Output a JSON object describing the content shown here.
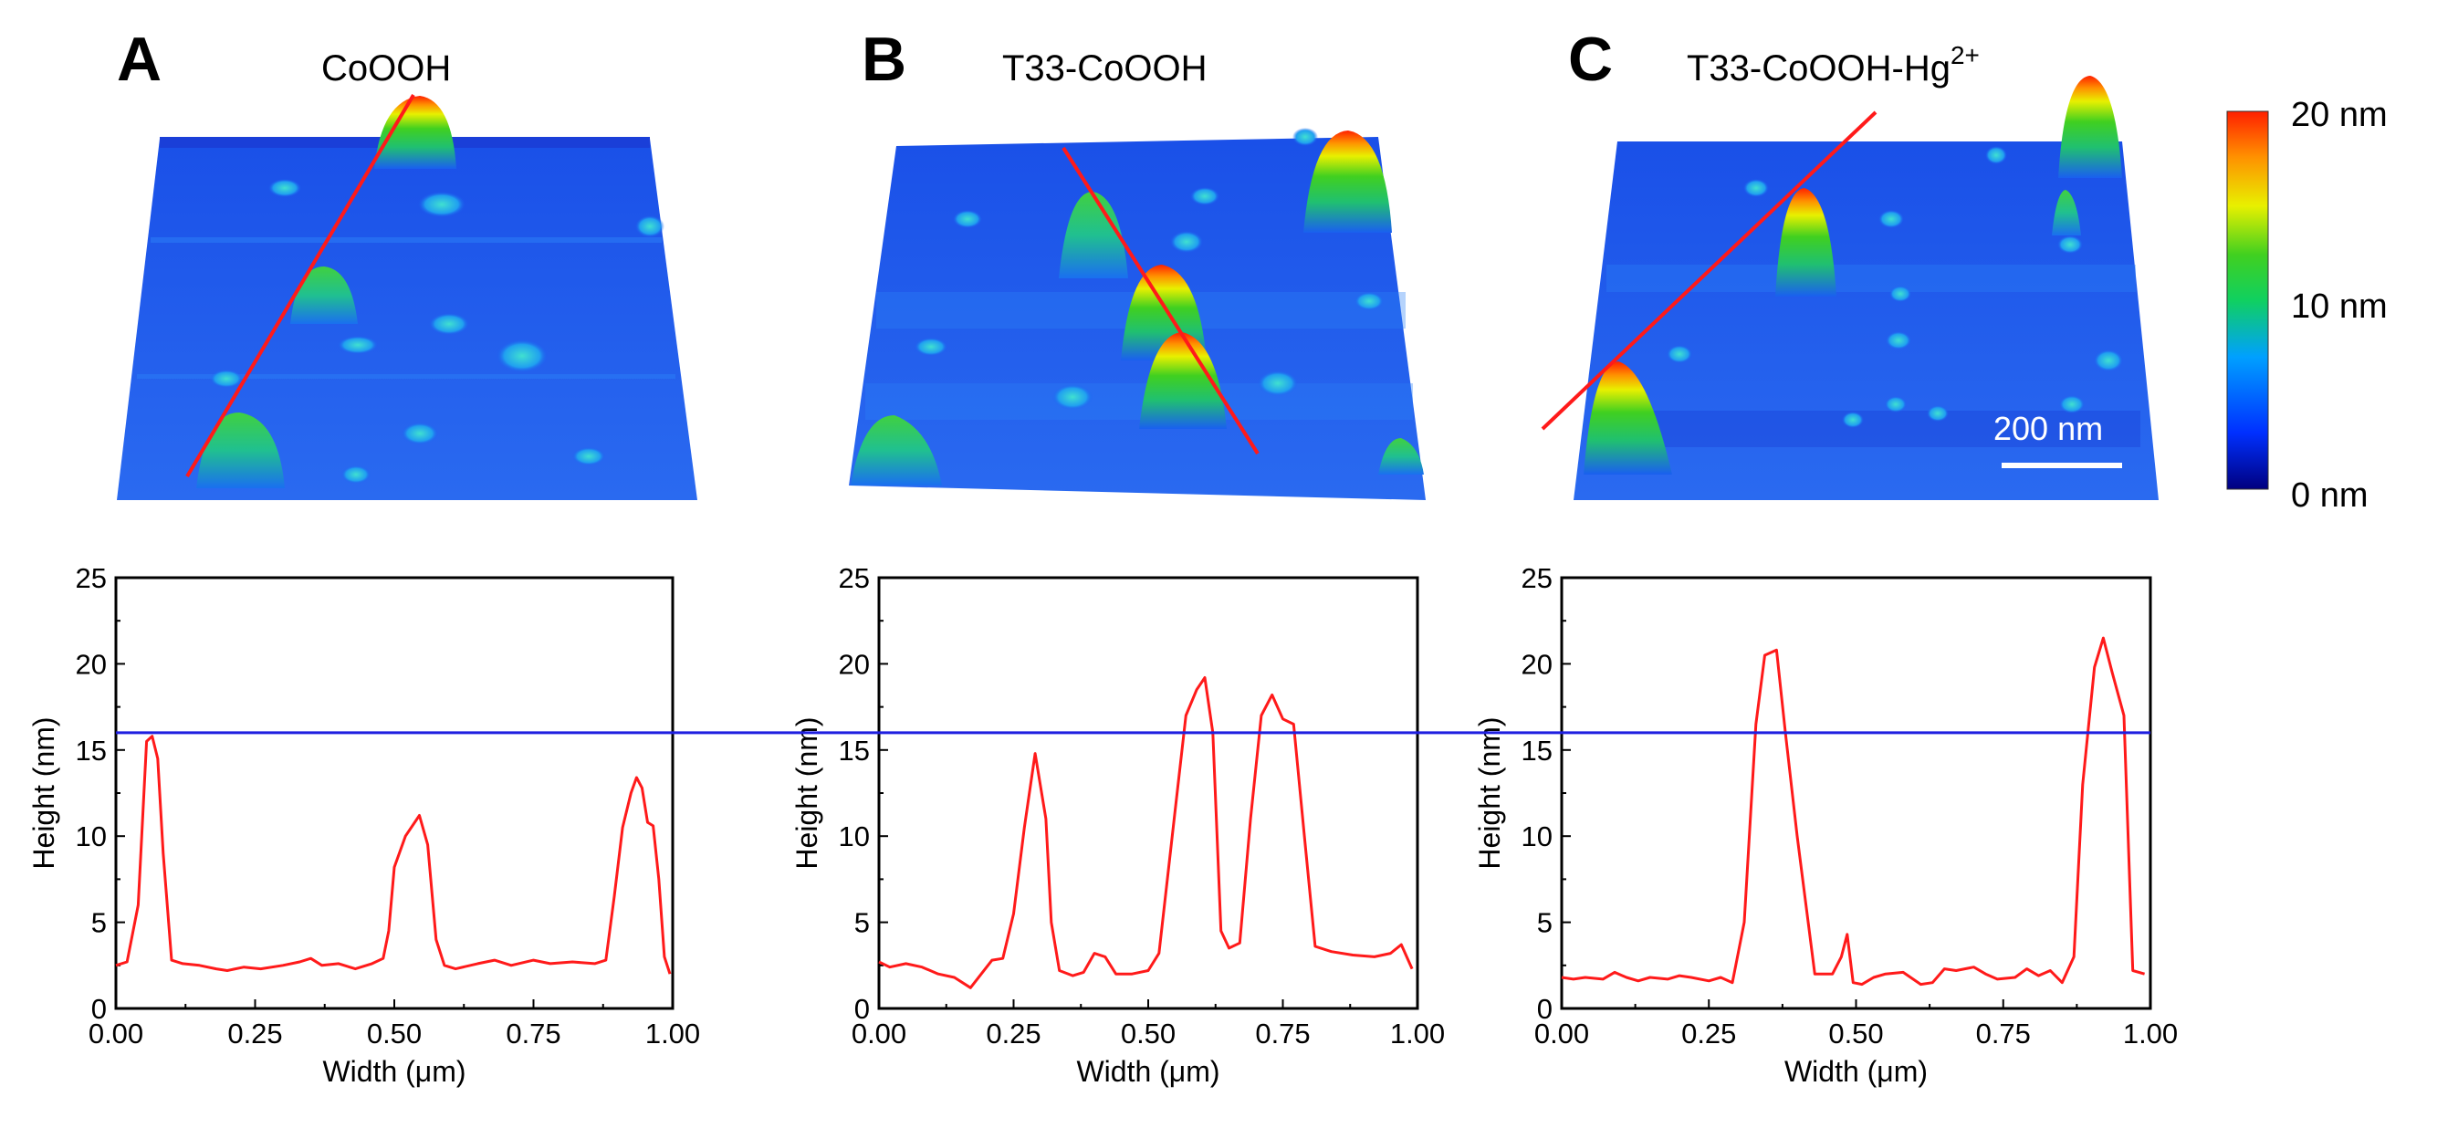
{
  "colors": {
    "profile_line": "#ff1a1a",
    "reference_line": "#1f1fe0",
    "colormap": [
      "#00007f",
      "#0030ff",
      "#00a0ff",
      "#10d060",
      "#40d020",
      "#e8f000",
      "#ff9000",
      "#ff2000"
    ]
  },
  "afm_images": [
    {
      "letter": "A",
      "title": "CoOOH"
    },
    {
      "letter": "B",
      "title": "T33-CoOOH"
    },
    {
      "letter": "C",
      "title": "T33-CoOOH-Hg",
      "title_sup": "2+"
    }
  ],
  "colorbar": {
    "labels": [
      "20 nm",
      "10 nm",
      "0 nm"
    ]
  },
  "scale_bar": {
    "label": "200 nm"
  },
  "chart_data": [
    {
      "type": "line",
      "panel": "A",
      "xlabel": "Width (μm)",
      "ylabel": "Height (nm)",
      "xlim": [
        0,
        1
      ],
      "ylim": [
        0,
        25
      ],
      "xticks": [
        "0.00",
        "0.25",
        "0.50",
        "0.75",
        "1.00"
      ],
      "yticks": [
        "0",
        "5",
        "10",
        "15",
        "20",
        "25"
      ],
      "reference_line_y": 16,
      "series": [
        {
          "x": [
            0.0,
            0.02,
            0.04,
            0.055,
            0.065,
            0.075,
            0.085,
            0.1,
            0.12,
            0.15,
            0.18,
            0.2,
            0.23,
            0.26,
            0.3,
            0.33,
            0.35,
            0.37,
            0.4,
            0.43,
            0.46,
            0.48,
            0.49,
            0.5,
            0.52,
            0.545,
            0.56,
            0.575,
            0.59,
            0.61,
            0.65,
            0.68,
            0.71,
            0.75,
            0.78,
            0.82,
            0.86,
            0.88,
            0.895,
            0.91,
            0.925,
            0.935,
            0.945,
            0.955,
            0.965,
            0.975,
            0.985,
            0.995
          ],
          "y": [
            2.5,
            2.7,
            6.0,
            15.5,
            15.8,
            14.5,
            9.0,
            2.8,
            2.6,
            2.5,
            2.3,
            2.2,
            2.4,
            2.3,
            2.5,
            2.7,
            2.9,
            2.5,
            2.6,
            2.3,
            2.6,
            2.9,
            4.5,
            8.2,
            10.0,
            11.2,
            9.5,
            4.0,
            2.5,
            2.3,
            2.6,
            2.8,
            2.5,
            2.8,
            2.6,
            2.7,
            2.6,
            2.8,
            6.5,
            10.5,
            12.5,
            13.4,
            12.8,
            10.8,
            10.6,
            7.5,
            3.0,
            2.0
          ]
        }
      ]
    },
    {
      "type": "line",
      "panel": "B",
      "xlabel": "Width (μm)",
      "ylabel": "Height (nm)",
      "xlim": [
        0,
        1
      ],
      "ylim": [
        0,
        25
      ],
      "xticks": [
        "0.00",
        "0.25",
        "0.50",
        "0.75",
        "1.00"
      ],
      "yticks": [
        "0",
        "5",
        "10",
        "15",
        "20",
        "25"
      ],
      "reference_line_y": 16,
      "series": [
        {
          "x": [
            0.0,
            0.02,
            0.05,
            0.08,
            0.11,
            0.14,
            0.17,
            0.19,
            0.21,
            0.23,
            0.25,
            0.27,
            0.29,
            0.31,
            0.32,
            0.335,
            0.36,
            0.38,
            0.4,
            0.42,
            0.44,
            0.47,
            0.5,
            0.52,
            0.55,
            0.57,
            0.59,
            0.605,
            0.62,
            0.635,
            0.65,
            0.67,
            0.69,
            0.71,
            0.73,
            0.75,
            0.77,
            0.79,
            0.81,
            0.84,
            0.88,
            0.92,
            0.95,
            0.97,
            0.99
          ],
          "y": [
            2.7,
            2.4,
            2.6,
            2.4,
            2.0,
            1.8,
            1.2,
            2.0,
            2.8,
            2.9,
            5.5,
            10.5,
            14.8,
            11.0,
            5.0,
            2.2,
            1.9,
            2.1,
            3.2,
            3.0,
            2.0,
            2.0,
            2.2,
            3.2,
            11.5,
            17.0,
            18.5,
            19.2,
            16.0,
            4.5,
            3.5,
            3.8,
            11.0,
            17.0,
            18.2,
            16.8,
            16.5,
            10.0,
            3.6,
            3.3,
            3.1,
            3.0,
            3.2,
            3.7,
            2.3
          ]
        }
      ]
    },
    {
      "type": "line",
      "panel": "C",
      "xlabel": "Width (μm)",
      "ylabel": "Height (nm)",
      "xlim": [
        0,
        1
      ],
      "ylim": [
        0,
        25
      ],
      "xticks": [
        "0.00",
        "0.25",
        "0.50",
        "0.75",
        "1.00"
      ],
      "yticks": [
        "0",
        "5",
        "10",
        "15",
        "20",
        "25"
      ],
      "reference_line_y": 16,
      "series": [
        {
          "x": [
            0.0,
            0.02,
            0.04,
            0.07,
            0.09,
            0.11,
            0.13,
            0.15,
            0.18,
            0.2,
            0.22,
            0.25,
            0.27,
            0.29,
            0.31,
            0.33,
            0.345,
            0.365,
            0.38,
            0.4,
            0.43,
            0.46,
            0.475,
            0.485,
            0.495,
            0.51,
            0.53,
            0.55,
            0.58,
            0.61,
            0.63,
            0.65,
            0.67,
            0.7,
            0.72,
            0.74,
            0.77,
            0.79,
            0.81,
            0.83,
            0.85,
            0.87,
            0.885,
            0.905,
            0.92,
            0.935,
            0.955,
            0.97,
            0.99
          ],
          "y": [
            1.8,
            1.7,
            1.8,
            1.7,
            2.1,
            1.8,
            1.6,
            1.8,
            1.7,
            1.9,
            1.8,
            1.6,
            1.8,
            1.5,
            5.0,
            16.5,
            20.5,
            20.8,
            16.0,
            10.0,
            2.0,
            2.0,
            3.0,
            4.3,
            1.5,
            1.4,
            1.8,
            2.0,
            2.1,
            1.4,
            1.5,
            2.3,
            2.2,
            2.4,
            2.0,
            1.7,
            1.8,
            2.3,
            1.9,
            2.2,
            1.5,
            3.0,
            13.0,
            19.8,
            21.5,
            19.5,
            17.0,
            2.2,
            2.0
          ]
        }
      ]
    }
  ]
}
